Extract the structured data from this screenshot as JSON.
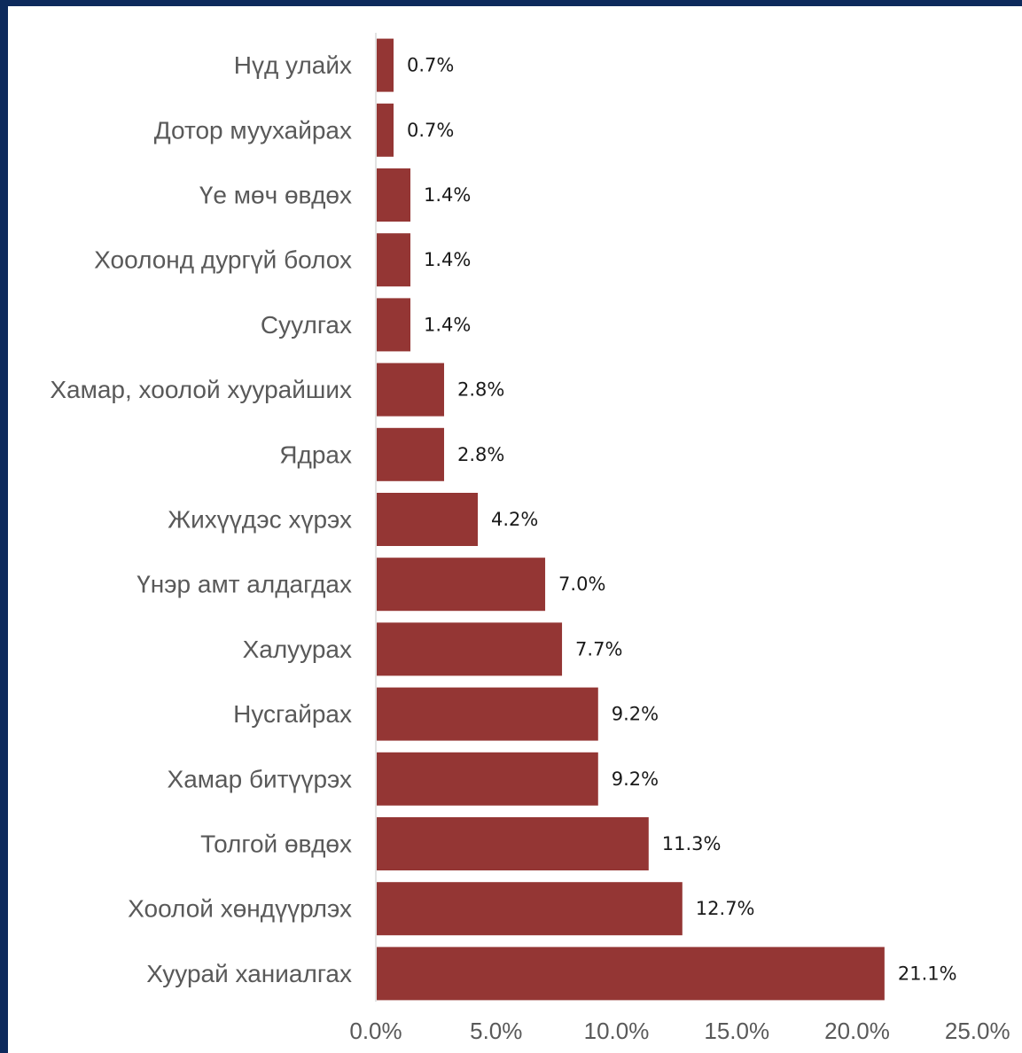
{
  "chart_data": {
    "type": "bar",
    "orientation": "horizontal",
    "categories": [
      "Нүд улайх",
      "Дотор муухайрах",
      "Үе мөч өвдөх",
      "Хоолонд дургүй болох",
      "Суулгах",
      "Хамар, хоолой хуурайших",
      "Ядрах",
      "Жихүүдэс хүрэх",
      "Үнэр амт алдагдах",
      "Халуурах",
      "Нусгайрах",
      "Хамар битүүрэх",
      "Толгой өвдөх",
      "Хоолой хөндүүрлэх",
      "Хуурай ханиалгах"
    ],
    "values": [
      0.7,
      0.7,
      1.4,
      1.4,
      1.4,
      2.8,
      2.8,
      4.2,
      7.0,
      7.7,
      9.2,
      9.2,
      11.3,
      12.7,
      21.1
    ],
    "value_labels": [
      "0.7%",
      "0.7%",
      "1.4%",
      "1.4%",
      "1.4%",
      "2.8%",
      "2.8%",
      "4.2%",
      "7.0%",
      "7.7%",
      "9.2%",
      "9.2%",
      "11.3%",
      "12.7%",
      "21.1%"
    ],
    "xticks": [
      "0.0%",
      "5.0%",
      "10.0%",
      "15.0%",
      "20.0%",
      "25.0%"
    ],
    "xlim": [
      0,
      25
    ],
    "title": "",
    "xlabel": "",
    "ylabel": "",
    "grid": false,
    "bar_color": "#943634"
  }
}
